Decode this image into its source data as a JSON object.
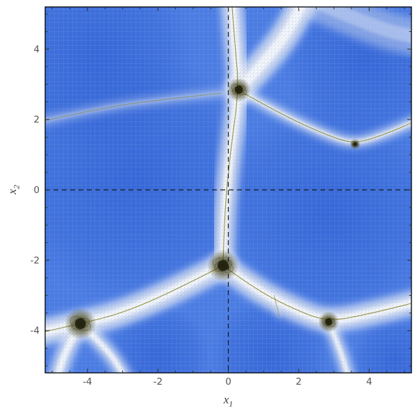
{
  "figure": {
    "outer_background": "#ffffff"
  },
  "chart_data": {
    "type": "heatmap",
    "title": "",
    "description": "Blue potential-landscape density plot with white ridge bands carrying a fine mesh, thin olive ridge center lines, dark knots at ridge junctions, and dashed origin axes.",
    "xlabel": {
      "base": "x",
      "sub": "1"
    },
    "ylabel": {
      "base": "x",
      "sub": "2"
    },
    "xlim": [
      -5.2,
      5.2
    ],
    "ylim": [
      -5.2,
      5.2
    ],
    "x_major_ticks": [
      {
        "value": -4,
        "label": "-4"
      },
      {
        "value": -2,
        "label": "-2"
      },
      {
        "value": 0,
        "label": "0"
      },
      {
        "value": 2,
        "label": "2"
      },
      {
        "value": 4,
        "label": "4"
      }
    ],
    "y_major_ticks": [
      {
        "value": -4,
        "label": "-4"
      },
      {
        "value": -2,
        "label": "-2"
      },
      {
        "value": 0,
        "label": "0"
      },
      {
        "value": 2,
        "label": "2"
      },
      {
        "value": 4,
        "label": "4"
      }
    ],
    "minor_tick_step": 0.5,
    "axis_origin_lines_dashed": true,
    "colors": {
      "base_blue": "#4b7ce2",
      "basin_blue": "#3465d6",
      "ridge_white": "#f4f7fb",
      "mesh_line": "#cdd9f2",
      "band_mesh_line": "#8e97ad",
      "ridge_line_olive": "#7b7a1a",
      "blob_dark": "#2a2a0e",
      "dashed_line": "#1a1a1a",
      "frame_color": "#000000",
      "tick_label_color": "#545454",
      "axis_label_color": "#3f3f3f"
    },
    "basin_centers": [
      {
        "x": -2.7,
        "y": 0.3,
        "r": 185
      },
      {
        "x": 2.9,
        "y": -0.6,
        "r": 165
      },
      {
        "x": -3.7,
        "y": 3.8,
        "r": 140
      },
      {
        "x": 3.9,
        "y": 3.7,
        "r": 120
      },
      {
        "x": -2.0,
        "y": -4.7,
        "r": 75
      },
      {
        "x": 1.2,
        "y": -4.7,
        "r": 85
      },
      {
        "x": 4.7,
        "y": -4.8,
        "r": 60
      }
    ],
    "ridges": [
      {
        "name": "vertical-ridge",
        "points": [
          [
            0.1,
            5.3
          ],
          [
            0.2,
            4.0
          ],
          [
            0.3,
            2.85
          ],
          [
            0.05,
            1.0
          ],
          [
            -0.1,
            -0.6
          ],
          [
            -0.15,
            -2.15
          ]
        ],
        "band": 20,
        "core": true,
        "faint": false
      },
      {
        "name": "top-right-band",
        "points": [
          [
            0.3,
            2.85
          ],
          [
            1.0,
            3.6
          ],
          [
            1.7,
            4.5
          ],
          [
            2.1,
            5.3
          ]
        ],
        "band": 26,
        "core": false,
        "faint": false
      },
      {
        "name": "right-thin-ridge",
        "points": [
          [
            0.35,
            2.8
          ],
          [
            1.5,
            2.15
          ],
          [
            2.8,
            1.55
          ],
          [
            3.6,
            1.3
          ],
          [
            4.5,
            1.6
          ],
          [
            5.3,
            1.95
          ]
        ],
        "band": 9,
        "core": true,
        "faint": false
      },
      {
        "name": "left-down-band",
        "points": [
          [
            -0.15,
            -2.15
          ],
          [
            -1.5,
            -2.85
          ],
          [
            -3.0,
            -3.5
          ],
          [
            -4.2,
            -3.8
          ],
          [
            -5.3,
            -4.05
          ]
        ],
        "band": 24,
        "core": true,
        "faint": false
      },
      {
        "name": "left-bottom-fork-a",
        "points": [
          [
            -4.2,
            -3.8
          ],
          [
            -4.6,
            -4.5
          ],
          [
            -4.85,
            -5.3
          ]
        ],
        "band": 16,
        "core": false,
        "faint": false
      },
      {
        "name": "left-bottom-fork-b",
        "points": [
          [
            -4.2,
            -3.8
          ],
          [
            -3.4,
            -4.55
          ],
          [
            -2.95,
            -5.3
          ]
        ],
        "band": 13,
        "core": false,
        "faint": false
      },
      {
        "name": "right-down-band",
        "points": [
          [
            -0.15,
            -2.15
          ],
          [
            0.8,
            -2.85
          ],
          [
            2.0,
            -3.45
          ],
          [
            2.85,
            -3.75
          ],
          [
            4.1,
            -3.5
          ],
          [
            5.3,
            -3.2
          ]
        ],
        "band": 22,
        "core": true,
        "faint": false
      },
      {
        "name": "right-bottom-fork",
        "points": [
          [
            2.85,
            -3.75
          ],
          [
            3.2,
            -4.6
          ],
          [
            3.4,
            -5.3
          ]
        ],
        "band": 11,
        "core": false,
        "faint": false
      },
      {
        "name": "left-faint-ridge",
        "points": [
          [
            -5.3,
            1.95
          ],
          [
            -3.5,
            2.35
          ],
          [
            -2.0,
            2.55
          ],
          [
            -0.2,
            2.75
          ]
        ],
        "band": 9,
        "core": true,
        "faint": true
      },
      {
        "name": "mesh-detail-line",
        "points": [
          [
            1.3,
            -3.0
          ],
          [
            1.45,
            -3.6
          ]
        ],
        "band": 4,
        "core": true,
        "faint": true
      },
      {
        "name": "top-right-corner-glow",
        "points": [
          [
            2.6,
            5.3
          ],
          [
            4.2,
            4.6
          ],
          [
            5.3,
            4.35
          ]
        ],
        "band": 36,
        "core": false,
        "faint": true
      }
    ],
    "blobs": [
      {
        "x": 0.3,
        "y": 2.85,
        "r": 9
      },
      {
        "x": -0.15,
        "y": -2.15,
        "r": 12
      },
      {
        "x": -4.2,
        "y": -3.8,
        "r": 12
      },
      {
        "x": 2.85,
        "y": -3.75,
        "r": 8
      },
      {
        "x": 3.6,
        "y": 1.3,
        "r": 4
      }
    ]
  }
}
